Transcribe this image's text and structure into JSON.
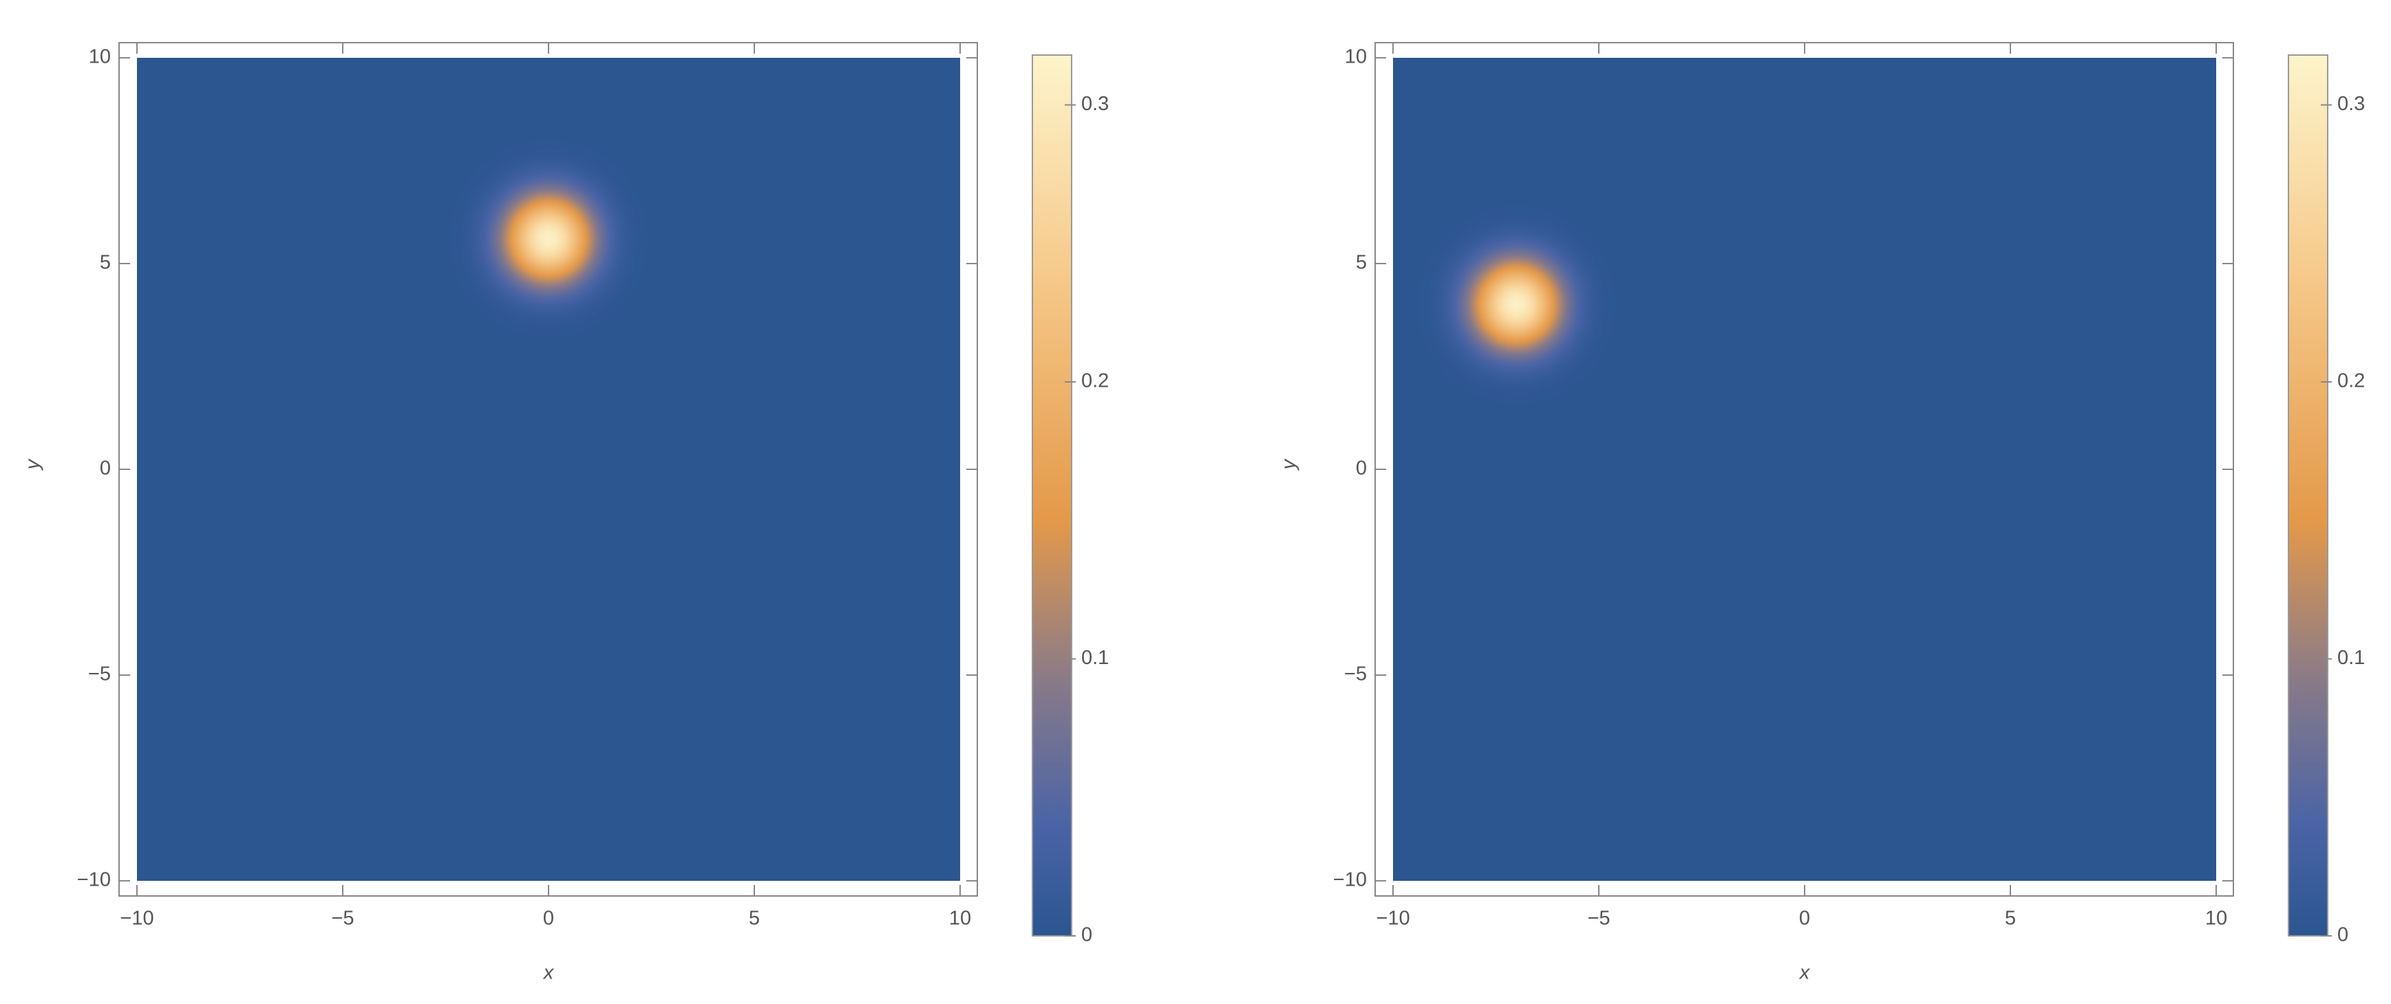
{
  "chart_data": [
    {
      "type": "heatmap",
      "xlabel": "x",
      "ylabel": "y",
      "xlim": [
        -10,
        10
      ],
      "ylim": [
        -10,
        10
      ],
      "xticks": [
        {
          "value": -10,
          "label": "−10"
        },
        {
          "value": -5,
          "label": "−5"
        },
        0,
        5,
        10
      ],
      "yticks": [
        {
          "value": -10,
          "label": "−10"
        },
        {
          "value": -5,
          "label": "−5"
        },
        0,
        5,
        10
      ],
      "peak": {
        "x": 0,
        "y": 5.6,
        "value": 0.31,
        "sigma": 0.75
      },
      "clim": [
        0,
        0.318
      ],
      "cticks": [
        0,
        0.1,
        0.2,
        0.3
      ],
      "colormap": [
        {
          "value": 0,
          "color": "#2b5690"
        },
        {
          "value": 0.04,
          "color": "#4a64a6"
        },
        {
          "value": 0.09,
          "color": "#86798a"
        },
        {
          "value": 0.15,
          "color": "#e4994a"
        },
        {
          "value": 0.24,
          "color": "#f6ca8b"
        },
        {
          "value": 0.318,
          "color": "#fdf4cb"
        }
      ]
    },
    {
      "type": "heatmap",
      "xlabel": "x",
      "ylabel": "y",
      "xlim": [
        -10,
        10
      ],
      "ylim": [
        -10,
        10
      ],
      "xticks": [
        {
          "value": -10,
          "label": "−10"
        },
        {
          "value": -5,
          "label": "−5"
        },
        0,
        5,
        10
      ],
      "yticks": [
        {
          "value": -10,
          "label": "−10"
        },
        {
          "value": -5,
          "label": "−5"
        },
        0,
        5,
        10
      ],
      "peak": {
        "x": -7,
        "y": 4,
        "value": 0.31,
        "sigma": 0.75
      },
      "clim": [
        0,
        0.318
      ],
      "cticks": [
        0,
        0.1,
        0.2,
        0.3
      ],
      "colormap": [
        {
          "value": 0,
          "color": "#2b5690"
        },
        {
          "value": 0.04,
          "color": "#4a64a6"
        },
        {
          "value": 0.09,
          "color": "#86798a"
        },
        {
          "value": 0.15,
          "color": "#e4994a"
        },
        {
          "value": 0.24,
          "color": "#f6ca8b"
        },
        {
          "value": 0.318,
          "color": "#fdf4cb"
        }
      ]
    }
  ]
}
